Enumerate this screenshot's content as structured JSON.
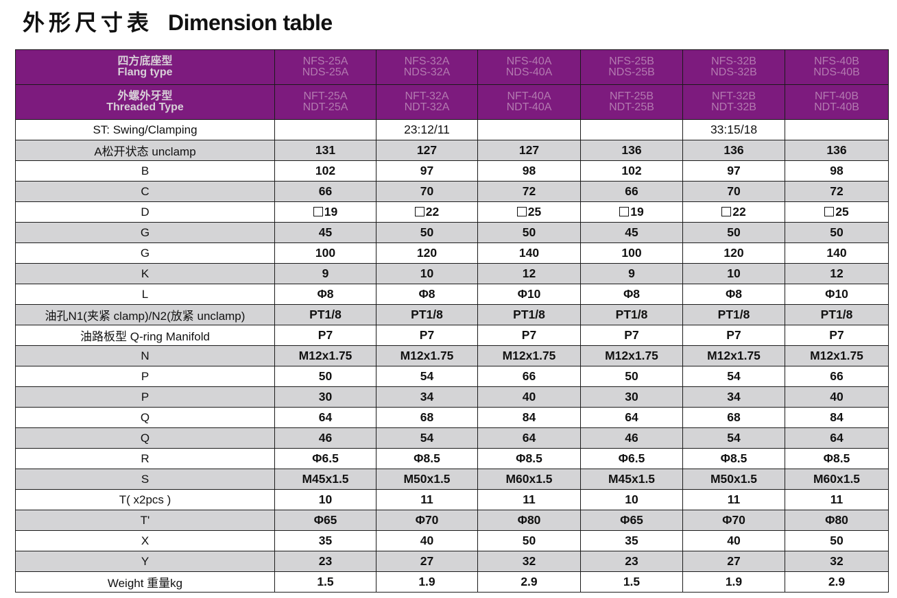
{
  "title": {
    "cn": "外形尺寸表",
    "en": "Dimension table"
  },
  "header": {
    "flang": {
      "label_cn": "四方底座型",
      "label_en": "Flang type",
      "models": [
        [
          "NFS-25A",
          "NDS-25A"
        ],
        [
          "NFS-32A",
          "NDS-32A"
        ],
        [
          "NFS-40A",
          "NDS-40A"
        ],
        [
          "NFS-25B",
          "NDS-25B"
        ],
        [
          "NFS-32B",
          "NDS-32B"
        ],
        [
          "NFS-40B",
          "NDS-40B"
        ]
      ]
    },
    "threaded": {
      "label_cn": "外螺外牙型",
      "label_en": "Threaded Type",
      "models": [
        [
          "NFT-25A",
          "NDT-25A"
        ],
        [
          "NFT-32A",
          "NDT-32A"
        ],
        [
          "NFT-40A",
          "NDT-40A"
        ],
        [
          "NFT-25B",
          "NDT-25B"
        ],
        [
          "NFT-32B",
          "NDT-32B"
        ],
        [
          "NFT-40B",
          "NDT-40B"
        ]
      ]
    }
  },
  "rows": [
    {
      "label": "ST: Swing/Clamping",
      "values": [
        "",
        "23:12/11",
        "",
        "",
        "33:15/18",
        ""
      ]
    },
    {
      "label": "A松开状态 unclamp",
      "values": [
        "131",
        "127",
        "127",
        "136",
        "136",
        "136"
      ]
    },
    {
      "label": "B",
      "values": [
        "102",
        "97",
        "98",
        "102",
        "97",
        "98"
      ]
    },
    {
      "label": "C",
      "values": [
        "66",
        "70",
        "72",
        "66",
        "70",
        "72"
      ]
    },
    {
      "label": "D",
      "values": [
        "19",
        "22",
        "25",
        "19",
        "22",
        "25"
      ]
    },
    {
      "label": "G",
      "values": [
        "45",
        "50",
        "50",
        "45",
        "50",
        "50"
      ]
    },
    {
      "label": "G",
      "values": [
        "100",
        "120",
        "140",
        "100",
        "120",
        "140"
      ]
    },
    {
      "label": "K",
      "values": [
        "9",
        "10",
        "12",
        "9",
        "10",
        "12"
      ]
    },
    {
      "label": "L",
      "values": [
        "Φ8",
        "Φ8",
        "Φ10",
        "Φ8",
        "Φ8",
        "Φ10"
      ]
    },
    {
      "label": "油孔N1(夹紧 clamp)/N2(放紧 unclamp)",
      "values": [
        "PT1/8",
        "PT1/8",
        "PT1/8",
        "PT1/8",
        "PT1/8",
        "PT1/8"
      ]
    },
    {
      "label": "油路板型 Q-ring Manifold",
      "values": [
        "P7",
        "P7",
        "P7",
        "P7",
        "P7",
        "P7"
      ]
    },
    {
      "label": "N",
      "values": [
        "M12x1.75",
        "M12x1.75",
        "M12x1.75",
        "M12x1.75",
        "M12x1.75",
        "M12x1.75"
      ]
    },
    {
      "label": "P",
      "values": [
        "50",
        "54",
        "66",
        "50",
        "54",
        "66"
      ]
    },
    {
      "label": "P",
      "values": [
        "30",
        "34",
        "40",
        "30",
        "34",
        "40"
      ]
    },
    {
      "label": "Q",
      "values": [
        "64",
        "68",
        "84",
        "64",
        "68",
        "84"
      ]
    },
    {
      "label": "Q",
      "values": [
        "46",
        "54",
        "64",
        "46",
        "54",
        "64"
      ]
    },
    {
      "label": "R",
      "values": [
        "Φ6.5",
        "Φ8.5",
        "Φ8.5",
        "Φ6.5",
        "Φ8.5",
        "Φ8.5"
      ]
    },
    {
      "label": "S",
      "values": [
        "M45x1.5",
        "M50x1.5",
        "M60x1.5",
        "M45x1.5",
        "M50x1.5",
        "M60x1.5"
      ]
    },
    {
      "label": "T( x2pcs )",
      "values": [
        "10",
        "11",
        "11",
        "10",
        "11",
        "11"
      ]
    },
    {
      "label": "T'",
      "values": [
        "Φ65",
        "Φ70",
        "Φ80",
        "Φ65",
        "Φ70",
        "Φ80"
      ]
    },
    {
      "label": "X",
      "values": [
        "35",
        "40",
        "50",
        "35",
        "40",
        "50"
      ]
    },
    {
      "label": "Y",
      "values": [
        "23",
        "27",
        "32",
        "23",
        "27",
        "32"
      ]
    },
    {
      "label": "Weight 重量kg",
      "values": [
        "1.5",
        "1.9",
        "2.9",
        "1.5",
        "1.9",
        "2.9"
      ]
    }
  ],
  "colors": {
    "header_bg": "#7d1b7e",
    "header_label": "#d8d0d8",
    "header_model": "#b37ab0",
    "stripe": "#d4d4d6"
  },
  "icons": {
    "square_symbol_rows": [
      "D"
    ]
  }
}
